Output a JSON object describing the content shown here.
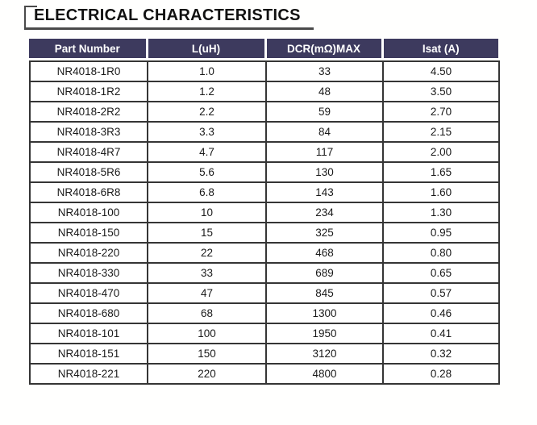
{
  "title": "ELECTRICAL CHARACTERISTICS",
  "colors": {
    "header_bg": "#3d3a5e",
    "header_text": "#ffffff",
    "body_text": "#1a1a1a",
    "grid_border": "#353535",
    "title_line": "#4a4a4a"
  },
  "table": {
    "columns": [
      "Part Number",
      "L(uH)",
      "DCR(mΩ)MAX",
      "Isat (A)"
    ],
    "column_keys": [
      "part-number",
      "l-uh",
      "dcr-mohm-max",
      "isat-a"
    ],
    "rows": [
      [
        "NR4018-1R0",
        "1.0",
        "33",
        "4.50"
      ],
      [
        "NR4018-1R2",
        "1.2",
        "48",
        "3.50"
      ],
      [
        "NR4018-2R2",
        "2.2",
        "59",
        "2.70"
      ],
      [
        "NR4018-3R3",
        "3.3",
        "84",
        "2.15"
      ],
      [
        "NR4018-4R7",
        "4.7",
        "117",
        "2.00"
      ],
      [
        "NR4018-5R6",
        "5.6",
        "130",
        "1.65"
      ],
      [
        "NR4018-6R8",
        "6.8",
        "143",
        "1.60"
      ],
      [
        "NR4018-100",
        "10",
        "234",
        "1.30"
      ],
      [
        "NR4018-150",
        "15",
        "325",
        "0.95"
      ],
      [
        "NR4018-220",
        "22",
        "468",
        "0.80"
      ],
      [
        "NR4018-330",
        "33",
        "689",
        "0.65"
      ],
      [
        "NR4018-470",
        "47",
        "845",
        "0.57"
      ],
      [
        "NR4018-680",
        "68",
        "1300",
        "0.46"
      ],
      [
        "NR4018-101",
        "100",
        "1950",
        "0.41"
      ],
      [
        "NR4018-151",
        "150",
        "3120",
        "0.32"
      ],
      [
        "NR4018-221",
        "220",
        "4800",
        "0.28"
      ]
    ]
  }
}
